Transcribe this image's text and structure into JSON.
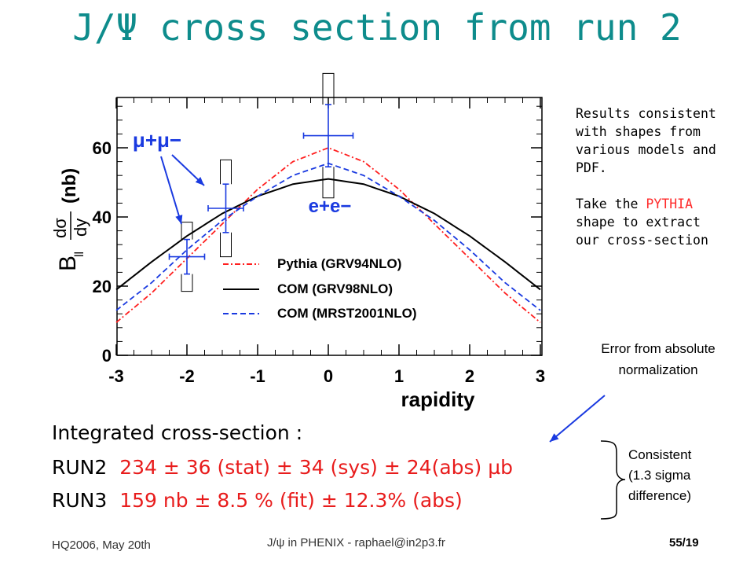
{
  "slide": {
    "title": "J/Ψ cross section from run 2",
    "notes": {
      "line1": "Results consistent",
      "line2": "with shapes from",
      "line3": "various models and",
      "line4": "PDF.",
      "line5_pre": "Take the ",
      "line5_hl": "PYTHIA",
      "line6": "shape to extract",
      "line7": "our cross-section"
    },
    "error_note": [
      "Error from absolute",
      "normalization"
    ],
    "integrated": {
      "heading": "Integrated cross-section :",
      "run2_label": "RUN2",
      "run2_value": "234 ± 36 (stat) ± 34 (sys) ± 24(abs) µb",
      "run3_label": "RUN3",
      "run3_value": "159 nb ± 8.5 % (fit) ± 12.3% (abs)"
    },
    "consistent": [
      "Consistent",
      "(1.3 sigma",
      "difference)"
    ],
    "footer": {
      "left": "HQ2006, May 20th",
      "center": "J/ψ in PHENIX - raphael@in2p3.fr",
      "right": "55/19"
    }
  },
  "chart_data": {
    "type": "line",
    "xlabel": "rapidity",
    "ylabel_parts": {
      "B": "B",
      "sub": "ll",
      "num": "dσ",
      "den": "dy",
      "unit": "(nb)"
    },
    "xlim": [
      -3,
      3
    ],
    "ylim": [
      0,
      75
    ],
    "xticks": [
      -3,
      -2,
      -1,
      0,
      1,
      2,
      3
    ],
    "yticks": [
      0,
      20,
      40,
      60
    ],
    "series": [
      {
        "name": "Pythia (GRV94NLO)",
        "color": "#ff2020",
        "dash": "dashdot",
        "x": [
          -3,
          -2.5,
          -2,
          -1.5,
          -1,
          -0.5,
          0,
          0.5,
          1,
          1.5,
          2,
          2.5,
          3
        ],
        "y": [
          9.5,
          18,
          28,
          38,
          48,
          56,
          60,
          56,
          48,
          38,
          28,
          18,
          9.5
        ]
      },
      {
        "name": "COM (GRV98NLO)",
        "color": "#000000",
        "dash": "solid",
        "x": [
          -3,
          -2.5,
          -2,
          -1.5,
          -1,
          -0.5,
          0,
          0.5,
          1,
          1.5,
          2,
          2.5,
          3
        ],
        "y": [
          19,
          27,
          34.5,
          41,
          46,
          49.5,
          51,
          49.5,
          46,
          41,
          34.5,
          27,
          19
        ]
      },
      {
        "name": "COM (MRST2001NLO)",
        "color": "#1a3ae0",
        "dash": "dashed",
        "x": [
          -3,
          -2.5,
          -2,
          -1.5,
          -1,
          -0.5,
          0,
          0.5,
          1,
          1.5,
          2,
          2.5,
          3
        ],
        "y": [
          13,
          21,
          30.5,
          39,
          46,
          52,
          55.5,
          52,
          46,
          39,
          30.5,
          21,
          13
        ]
      }
    ],
    "points": [
      {
        "channel": "μ+μ−",
        "x": -2.0,
        "y": 28.5,
        "xerr": 0.25,
        "stat": 5,
        "sys": 10
      },
      {
        "channel": "μ+μ−",
        "x": -1.45,
        "y": 42.5,
        "xerr": 0.25,
        "stat": 7,
        "sys": 14
      },
      {
        "channel": "e+e−",
        "x": 0.0,
        "y": 63.5,
        "xerr": 0.35,
        "stat": 9,
        "sys": 18
      }
    ],
    "annotations": {
      "mumu": "μ+μ−",
      "ee": "e+e−"
    }
  }
}
